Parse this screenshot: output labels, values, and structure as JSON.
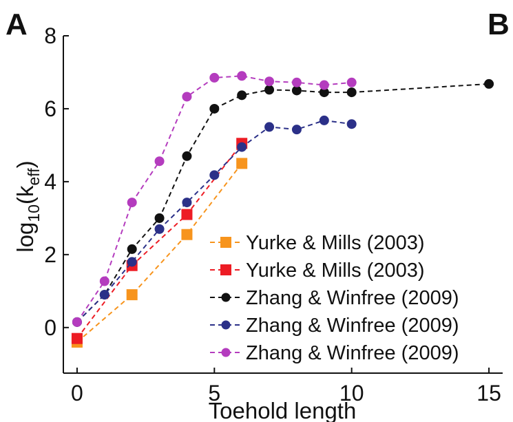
{
  "panel_labels": {
    "left": "A",
    "right": "B"
  },
  "chart_data": {
    "type": "line",
    "xlabel": "Toehold length",
    "ylabel_main": "log",
    "ylabel_sub1": "10",
    "ylabel_paren_open": "(k",
    "ylabel_sub2": "eff",
    "ylabel_paren_close": ")",
    "xlim": [
      -0.5,
      15.5
    ],
    "ylim": [
      -1.25,
      8
    ],
    "xticks": [
      0,
      5,
      10,
      15
    ],
    "yticks": [
      0,
      2,
      4,
      6,
      8
    ],
    "xtick_labels": [
      "0",
      "5",
      "10",
      "15"
    ],
    "ytick_labels": [
      "0",
      "2",
      "4",
      "6",
      "8"
    ],
    "grid": false,
    "legend_position": "bottom-right",
    "series": [
      {
        "name": "Yurke & Mills (2003)",
        "color": "#f7941d",
        "marker": "square",
        "x": [
          0,
          2,
          4,
          6
        ],
        "y": [
          -0.4,
          0.9,
          2.55,
          4.5
        ]
      },
      {
        "name": "Yurke & Mills (2003)",
        "color": "#ed1c24",
        "marker": "square",
        "x": [
          0,
          2,
          4,
          6
        ],
        "y": [
          -0.3,
          1.7,
          3.1,
          5.05
        ]
      },
      {
        "name": "Zhang & Winfree (2009)",
        "color": "#111111",
        "marker": "circle",
        "x": [
          0,
          1,
          2,
          3,
          4,
          5,
          6,
          7,
          8,
          9,
          10,
          15
        ],
        "y": [
          0.15,
          0.9,
          2.15,
          3.0,
          4.7,
          6.0,
          6.37,
          6.52,
          6.5,
          6.45,
          6.45,
          6.68
        ]
      },
      {
        "name": "Zhang & Winfree (2009)",
        "color": "#2b3088",
        "marker": "circle",
        "x": [
          0,
          1,
          2,
          3,
          4,
          5,
          6,
          7,
          8,
          9,
          10
        ],
        "y": [
          0.15,
          0.9,
          1.8,
          2.7,
          3.43,
          4.18,
          4.95,
          5.5,
          5.43,
          5.68,
          5.58
        ]
      },
      {
        "name": "Zhang & Winfree (2009)",
        "color": "#b43cbe",
        "marker": "circle",
        "x": [
          0,
          1,
          2,
          3,
          4,
          5,
          6,
          7,
          8,
          9,
          10
        ],
        "y": [
          0.15,
          1.27,
          3.43,
          4.56,
          6.33,
          6.85,
          6.9,
          6.75,
          6.72,
          6.65,
          6.72
        ]
      }
    ]
  }
}
